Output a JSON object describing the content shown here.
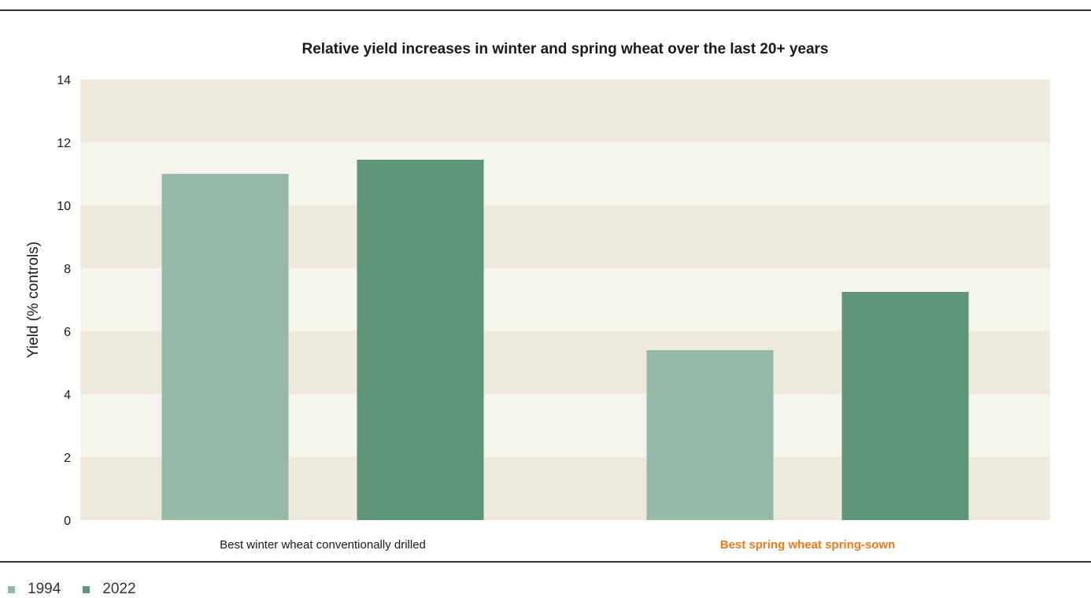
{
  "chart_data": {
    "type": "bar",
    "title": "Relative yield increases in winter and spring wheat over the last 20+ years",
    "ylabel": "Yield (% controls)",
    "xlabel": "",
    "ylim": [
      0,
      14
    ],
    "yticks": [
      0,
      2,
      4,
      6,
      8,
      10,
      12,
      14
    ],
    "categories": [
      "Best winter wheat conventionally drilled",
      "Best spring wheat spring-sown"
    ],
    "highlighted_category": "Best spring wheat spring-sown",
    "series": [
      {
        "name": "1994",
        "values": [
          11.0,
          5.4
        ],
        "color": "#95b9a7"
      },
      {
        "name": "2022",
        "values": [
          11.45,
          7.25
        ],
        "color": "#5e967c"
      }
    ],
    "band_colors": [
      "#edeadd",
      "#f5f4ec"
    ],
    "highlight_color": "#f07a1a",
    "legend_position": "bottom-left"
  }
}
